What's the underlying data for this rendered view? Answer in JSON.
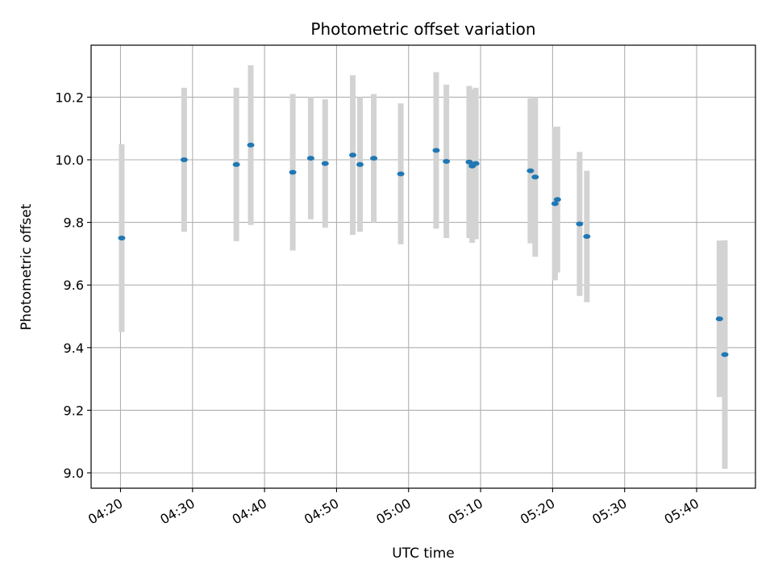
{
  "chart_data": {
    "type": "scatter",
    "title": "Photometric offset variation",
    "xlabel": "UTC time",
    "ylabel": "Photometric offset",
    "x_ticks": [
      "04:20",
      "04:30",
      "04:40",
      "04:50",
      "05:00",
      "05:10",
      "05:20",
      "05:30",
      "05:40"
    ],
    "y_ticks": [
      "9.0",
      "9.2",
      "9.4",
      "9.6",
      "9.8",
      "10.0",
      "10.2"
    ],
    "xlim": [
      "04:15:55",
      "05:48:10"
    ],
    "ylim": [
      8.951,
      10.366
    ],
    "grid": true,
    "colors": {
      "marker": "#1f77b4",
      "errorbar": "#d3d3d3",
      "grid": "#b0b0b0"
    },
    "points": [
      {
        "time": "04:20:10",
        "y": 9.75,
        "err": 0.3
      },
      {
        "time": "04:28:50",
        "y": 10.0,
        "err": 0.23
      },
      {
        "time": "04:36:05",
        "y": 9.985,
        "err": 0.245
      },
      {
        "time": "04:38:05",
        "y": 10.047,
        "err": 0.255
      },
      {
        "time": "04:43:55",
        "y": 9.96,
        "err": 0.25
      },
      {
        "time": "04:46:25",
        "y": 10.005,
        "err": 0.195
      },
      {
        "time": "04:48:25",
        "y": 9.988,
        "err": 0.205
      },
      {
        "time": "04:52:15",
        "y": 10.015,
        "err": 0.255
      },
      {
        "time": "04:53:15",
        "y": 9.985,
        "err": 0.215
      },
      {
        "time": "04:55:10",
        "y": 10.005,
        "err": 0.205
      },
      {
        "time": "04:58:55",
        "y": 9.955,
        "err": 0.225
      },
      {
        "time": "05:03:50",
        "y": 10.03,
        "err": 0.25
      },
      {
        "time": "05:05:15",
        "y": 9.995,
        "err": 0.245
      },
      {
        "time": "05:08:25",
        "y": 9.993,
        "err": 0.243
      },
      {
        "time": "05:08:50",
        "y": 9.98,
        "err": 0.245
      },
      {
        "time": "05:09:20",
        "y": 9.988,
        "err": 0.242
      },
      {
        "time": "05:16:55",
        "y": 9.965,
        "err": 0.232
      },
      {
        "time": "05:17:35",
        "y": 9.945,
        "err": 0.255
      },
      {
        "time": "05:20:20",
        "y": 9.86,
        "err": 0.245
      },
      {
        "time": "05:20:40",
        "y": 9.873,
        "err": 0.233
      },
      {
        "time": "05:23:45",
        "y": 9.795,
        "err": 0.23
      },
      {
        "time": "05:24:45",
        "y": 9.755,
        "err": 0.21
      },
      {
        "time": "05:43:10",
        "y": 9.492,
        "err": 0.25
      },
      {
        "time": "05:43:55",
        "y": 9.378,
        "err": 0.365
      }
    ]
  }
}
